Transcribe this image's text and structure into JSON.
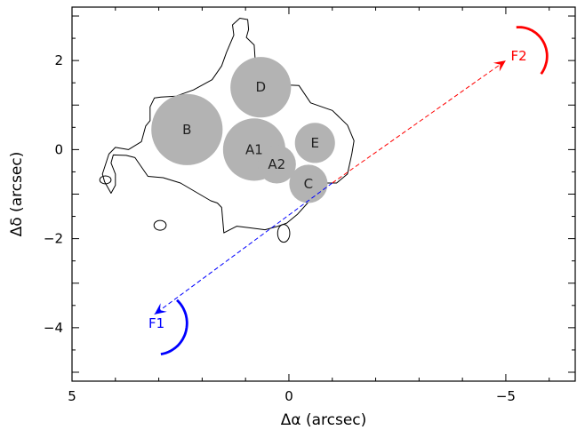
{
  "axes": {
    "xlabel": "Δα (arcsec)",
    "ylabel": "Δδ (arcsec)",
    "xlim": [
      5,
      -6.6
    ],
    "ylim": [
      -5.2,
      3.2
    ],
    "x_direction": "decreasing-to-right",
    "x_major_ticks": [
      5,
      0,
      -5
    ],
    "x_tick_labels": [
      "5",
      "0",
      "−5"
    ],
    "y_major_ticks": [
      2,
      0,
      -2,
      -4
    ],
    "y_tick_labels": [
      "2",
      "0",
      "−2",
      "−4"
    ],
    "grid": false
  },
  "components": [
    {
      "label": "B",
      "x": 2.35,
      "y": 0.45,
      "radius": 0.8
    },
    {
      "label": "D",
      "x": 0.65,
      "y": 1.4,
      "radius": 0.68
    },
    {
      "label": "A1",
      "x": 0.8,
      "y": 0.0,
      "radius": 0.7
    },
    {
      "label": "A2",
      "x": 0.28,
      "y": -0.33,
      "radius": 0.43
    },
    {
      "label": "E",
      "x": -0.6,
      "y": 0.15,
      "radius": 0.45
    },
    {
      "label": "C",
      "x": -0.45,
      "y": -0.77,
      "radius": 0.43
    }
  ],
  "components_color": "#b3b3b3",
  "arrows": [
    {
      "label": "F2",
      "color": "#ff0000",
      "from": [
        -1.0,
        -0.75
      ],
      "to": [
        -5.0,
        2.0
      ],
      "arc_center": [
        -5.3,
        2.1
      ],
      "arc_radius": 0.65,
      "arc_from_deg": 95,
      "arc_to_deg": -38
    },
    {
      "label": "F1",
      "color": "#0000ff",
      "from": [
        -1.0,
        -0.75
      ],
      "to": [
        3.1,
        -3.7
      ],
      "arc_center": [
        3.05,
        -3.9
      ],
      "arc_radius": 0.7,
      "arc_from_deg": 48,
      "arc_to_deg": -82
    }
  ],
  "contour": {
    "color": "#000000",
    "main": [
      [
        1.27,
        2.57
      ],
      [
        1.3,
        2.8
      ],
      [
        1.13,
        2.95
      ],
      [
        0.95,
        2.92
      ],
      [
        0.93,
        2.7
      ],
      [
        0.98,
        2.52
      ],
      [
        0.8,
        2.35
      ],
      [
        0.78,
        2.05
      ],
      [
        0.6,
        1.92
      ],
      [
        0.3,
        1.68
      ],
      [
        0.15,
        1.5
      ],
      [
        0.0,
        1.45
      ],
      [
        -0.23,
        1.44
      ],
      [
        -0.5,
        1.05
      ],
      [
        -0.88,
        0.92
      ],
      [
        -1.0,
        0.88
      ],
      [
        -1.35,
        0.55
      ],
      [
        -1.5,
        0.2
      ],
      [
        -1.45,
        -0.1
      ],
      [
        -1.35,
        -0.55
      ],
      [
        -1.1,
        -0.75
      ],
      [
        -0.85,
        -0.75
      ],
      [
        -0.65,
        -0.92
      ],
      [
        -0.45,
        -1.18
      ],
      [
        -0.2,
        -1.45
      ],
      [
        0.05,
        -1.65
      ],
      [
        0.25,
        -1.72
      ],
      [
        0.55,
        -1.8
      ],
      [
        0.95,
        -1.75
      ],
      [
        1.2,
        -1.72
      ],
      [
        1.5,
        -1.87
      ],
      [
        1.55,
        -1.3
      ],
      [
        1.65,
        -1.2
      ],
      [
        1.8,
        -1.15
      ],
      [
        2.5,
        -0.75
      ],
      [
        2.9,
        -0.63
      ],
      [
        3.25,
        -0.6
      ],
      [
        3.55,
        -0.18
      ],
      [
        3.75,
        -0.13
      ],
      [
        4.05,
        -0.12
      ],
      [
        4.1,
        -0.3
      ],
      [
        4.0,
        -0.55
      ],
      [
        4.0,
        -0.8
      ],
      [
        4.1,
        -0.98
      ],
      [
        4.25,
        -0.72
      ],
      [
        4.3,
        -0.55
      ],
      [
        4.15,
        -0.1
      ],
      [
        4.0,
        0.05
      ],
      [
        3.7,
        0.0
      ],
      [
        3.4,
        0.18
      ],
      [
        3.3,
        0.53
      ],
      [
        3.2,
        0.65
      ],
      [
        3.2,
        0.96
      ],
      [
        3.1,
        1.16
      ],
      [
        2.95,
        1.18
      ],
      [
        2.6,
        1.2
      ],
      [
        2.2,
        1.34
      ],
      [
        1.77,
        1.57
      ],
      [
        1.55,
        1.88
      ],
      [
        1.44,
        2.18
      ],
      [
        1.27,
        2.57
      ]
    ],
    "islands": [
      {
        "cx": 4.23,
        "cy": -0.68,
        "rx": 0.13,
        "ry": 0.09
      },
      {
        "cx": 2.97,
        "cy": -1.7,
        "rx": 0.14,
        "ry": 0.11
      },
      {
        "cx": 0.12,
        "cy": -1.88,
        "rx": 0.14,
        "ry": 0.2
      }
    ]
  }
}
